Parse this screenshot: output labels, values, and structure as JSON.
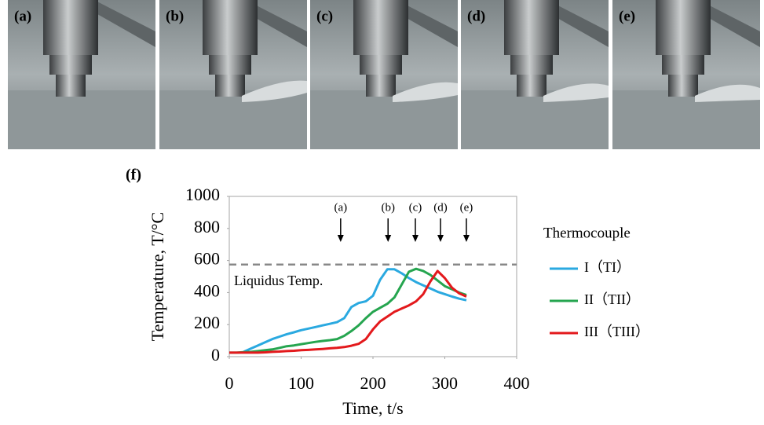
{
  "panels": [
    "(a)",
    "(b)",
    "(c)",
    "(d)",
    "(e)"
  ],
  "chart_data": {
    "type": "line",
    "panel_label": "(f)",
    "x_label": "Time, t/s",
    "y_label": "Temperature, T/°C",
    "xlim": [
      0,
      400
    ],
    "xticks": [
      0,
      100,
      200,
      300,
      400
    ],
    "ylim": [
      0,
      1000
    ],
    "yticks": [
      0,
      200,
      400,
      600,
      800,
      1000
    ],
    "grid": false,
    "x": [
      0,
      10,
      20,
      30,
      40,
      50,
      60,
      70,
      80,
      90,
      100,
      110,
      120,
      130,
      140,
      150,
      160,
      170,
      180,
      190,
      200,
      210,
      220,
      230,
      240,
      250,
      260,
      270,
      280,
      290,
      300,
      310,
      320,
      330
    ],
    "series": [
      {
        "name": "I（TI）",
        "color": "#2aa9e0",
        "values": [
          null,
          null,
          30,
          50,
          70,
          90,
          110,
          125,
          140,
          152,
          165,
          175,
          185,
          195,
          205,
          215,
          240,
          310,
          335,
          345,
          380,
          480,
          545,
          545,
          520,
          490,
          465,
          445,
          425,
          405,
          390,
          375,
          362,
          352
        ]
      },
      {
        "name": "II（TII）",
        "color": "#25a54f",
        "values": [
          25,
          25,
          28,
          30,
          35,
          40,
          45,
          55,
          65,
          70,
          78,
          85,
          92,
          98,
          103,
          110,
          130,
          160,
          195,
          240,
          280,
          305,
          330,
          370,
          450,
          530,
          548,
          535,
          510,
          475,
          440,
          420,
          400,
          385
        ]
      },
      {
        "name": "III（TIII）",
        "color": "#e3191c",
        "values": [
          25,
          25,
          25,
          25,
          25,
          27,
          30,
          32,
          35,
          37,
          40,
          42,
          45,
          48,
          52,
          55,
          60,
          68,
          80,
          110,
          170,
          220,
          250,
          280,
          300,
          320,
          345,
          390,
          470,
          535,
          490,
          430,
          395,
          375
        ]
      }
    ],
    "legend_title": "Thermocouple",
    "hline": {
      "value": 575,
      "label": "Liquidus Temp.",
      "color": "#888888"
    },
    "arrows": [
      {
        "label": "(a)",
        "x": 155
      },
      {
        "label": "(b)",
        "x": 221
      },
      {
        "label": "(c)",
        "x": 259
      },
      {
        "label": "(d)",
        "x": 294
      },
      {
        "label": "(e)",
        "x": 330
      }
    ]
  }
}
